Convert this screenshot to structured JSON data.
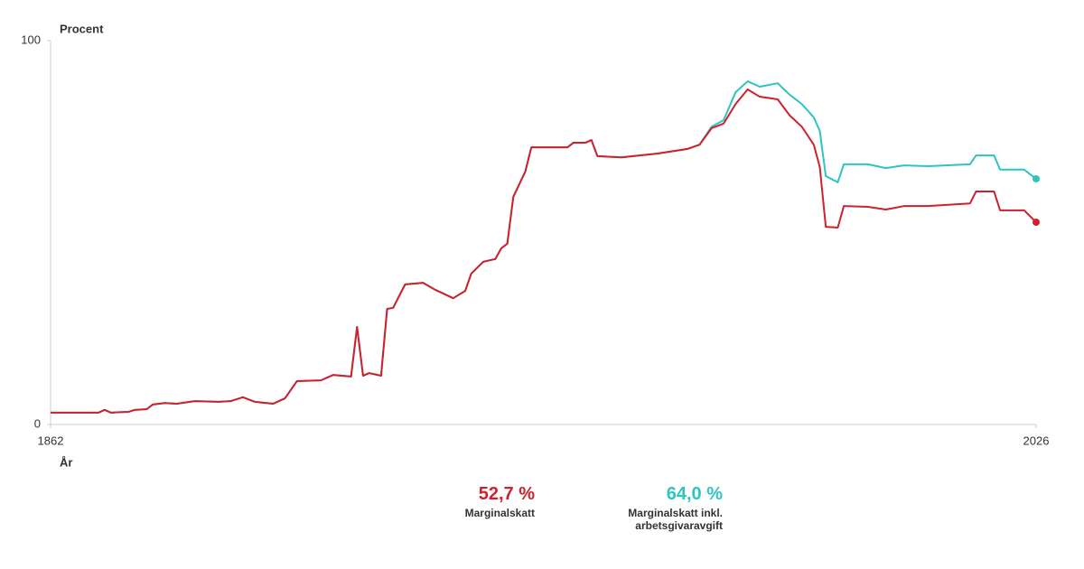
{
  "chart_data": {
    "type": "line",
    "y_label": "Procent",
    "x_label": "År",
    "xlim": [
      1862,
      2026
    ],
    "xticks": [
      1862,
      2026
    ],
    "ylim": [
      0,
      100
    ],
    "yticks": [
      0,
      100
    ],
    "x": [
      1862,
      1870,
      1871,
      1872,
      1875,
      1876,
      1878,
      1879,
      1881,
      1883,
      1886,
      1890,
      1892,
      1894,
      1896,
      1899,
      1901,
      1903,
      1907,
      1909,
      1912,
      1913,
      1914,
      1915,
      1917,
      1918,
      1919,
      1921,
      1924,
      1926,
      1929,
      1931,
      1932,
      1934,
      1936,
      1937,
      1938,
      1939,
      1941,
      1942,
      1948,
      1949,
      1951,
      1952,
      1953,
      1957,
      1963,
      1968,
      1970,
      1972,
      1974,
      1976,
      1978,
      1980,
      1983,
      1985,
      1987,
      1989,
      1990,
      1991,
      1993,
      1994,
      1998,
      2001,
      2004,
      2008,
      2015,
      2016,
      2019,
      2020,
      2024,
      2026
    ],
    "series": [
      {
        "name": "Marginalskatt",
        "color": "#d0202e",
        "values": [
          3.1,
          3.1,
          3.8,
          3.1,
          3.3,
          3.8,
          4.0,
          5.2,
          5.6,
          5.4,
          6.1,
          5.9,
          6.1,
          7.1,
          5.9,
          5.4,
          6.8,
          11.3,
          11.5,
          12.9,
          12.5,
          25.4,
          12.7,
          13.4,
          12.7,
          30.1,
          30.4,
          36.5,
          36.9,
          35.1,
          32.9,
          34.8,
          39.3,
          42.4,
          43.1,
          45.9,
          47.1,
          59.3,
          65.9,
          72.2,
          72.2,
          73.4,
          73.4,
          74.1,
          69.9,
          69.6,
          70.6,
          71.8,
          72.9,
          77.2,
          78.4,
          83.5,
          87.3,
          85.4,
          84.7,
          80.5,
          77.6,
          72.9,
          67.1,
          51.5,
          51.3,
          56.9,
          56.7,
          56.0,
          56.9,
          56.9,
          57.6,
          60.7,
          60.7,
          55.8,
          55.8,
          52.7
        ],
        "value_labels": [
          null,
          null,
          null,
          null,
          null,
          null,
          null,
          null,
          null,
          null,
          null,
          null,
          null,
          null,
          null,
          null,
          null,
          null,
          null,
          null,
          null,
          null,
          null,
          null,
          null,
          null,
          null,
          null,
          null,
          null,
          null,
          null,
          null,
          null,
          null,
          null,
          null,
          null,
          null,
          null,
          null,
          null,
          null,
          null,
          null,
          null,
          null,
          null,
          null,
          null,
          null,
          null,
          null,
          null,
          null,
          null,
          null,
          null,
          null,
          null,
          null,
          null,
          null,
          null,
          null,
          null,
          null,
          null,
          null,
          null,
          null,
          "52,7 %"
        ]
      },
      {
        "name": "Marginalskatt inkl. arbetsgivaravgift",
        "color": "#2ec4c0",
        "values": [
          3.1,
          3.1,
          3.8,
          3.1,
          3.3,
          3.8,
          4.0,
          5.2,
          5.6,
          5.4,
          6.1,
          5.9,
          6.1,
          7.1,
          5.9,
          5.4,
          6.8,
          11.3,
          11.5,
          12.9,
          12.5,
          25.4,
          12.7,
          13.4,
          12.7,
          30.1,
          30.4,
          36.5,
          36.9,
          35.1,
          32.9,
          34.8,
          39.3,
          42.4,
          43.1,
          45.9,
          47.1,
          59.3,
          65.9,
          72.2,
          72.2,
          73.4,
          73.4,
          74.1,
          69.9,
          69.6,
          70.6,
          71.8,
          72.9,
          77.6,
          79.3,
          86.6,
          89.4,
          88.0,
          88.9,
          85.9,
          83.5,
          80.0,
          76.5,
          64.7,
          63.1,
          67.8,
          67.8,
          66.8,
          67.5,
          67.3,
          67.8,
          70.1,
          70.1,
          66.4,
          66.4,
          64.0
        ],
        "value_labels": [
          null,
          null,
          null,
          null,
          null,
          null,
          null,
          null,
          null,
          null,
          null,
          null,
          null,
          null,
          null,
          null,
          null,
          null,
          null,
          null,
          null,
          null,
          null,
          null,
          null,
          null,
          null,
          null,
          null,
          null,
          null,
          null,
          null,
          null,
          null,
          null,
          null,
          null,
          null,
          null,
          null,
          null,
          null,
          null,
          null,
          null,
          null,
          null,
          null,
          null,
          null,
          null,
          null,
          null,
          null,
          null,
          null,
          null,
          null,
          null,
          null,
          null,
          null,
          null,
          null,
          null,
          null,
          null,
          null,
          null,
          null,
          "64,0 %"
        ]
      }
    ]
  }
}
